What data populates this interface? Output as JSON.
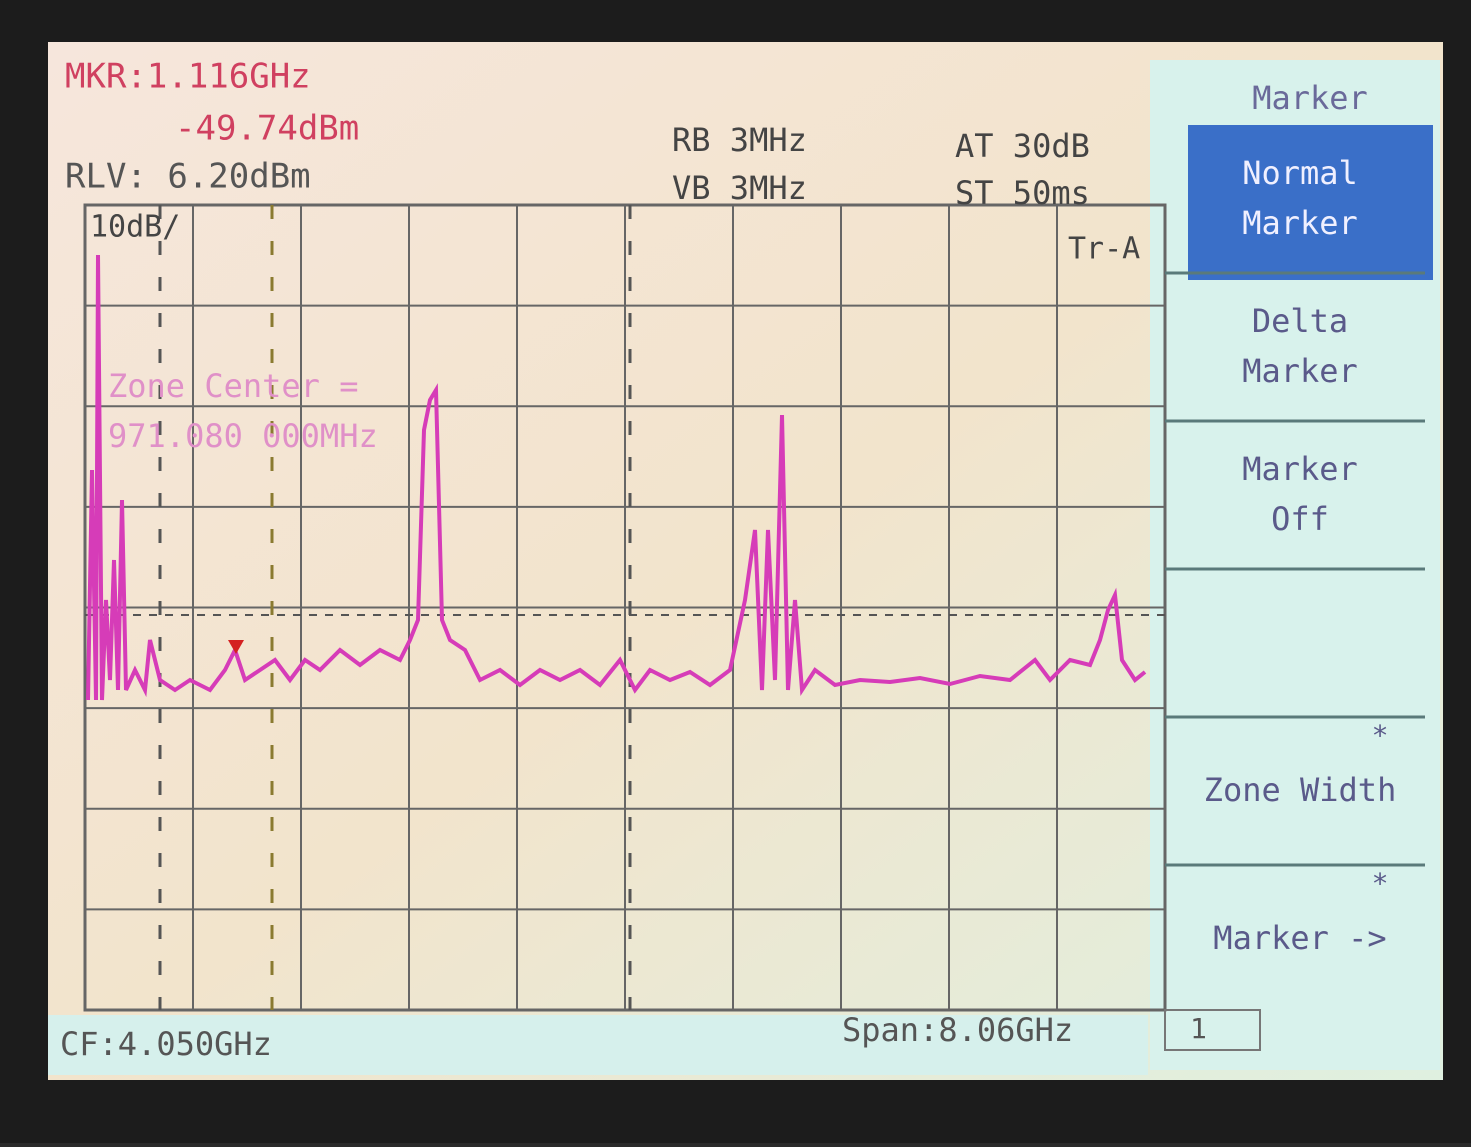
{
  "header": {
    "marker_frequency": "MKR:1.116GHz",
    "marker_level": "-49.74dBm",
    "reference_level": "RLV: 6.20dBm"
  },
  "settings": {
    "rbw": "RB 3MHz",
    "vbw": "VB 3MHz",
    "attenuation": "AT 30dB",
    "sweep_time": "ST 50ms"
  },
  "graticule": {
    "scale": "10dB/",
    "trace": "Tr-A"
  },
  "zone": {
    "label": "Zone Center =",
    "value": "971.080 000MHz"
  },
  "footer": {
    "center_frequency": "CF:4.050GHz",
    "span": "Span:8.06GHz",
    "indicator": "1"
  },
  "menu": {
    "title": "Marker",
    "items": [
      {
        "lines": [
          "Normal",
          "Marker"
        ]
      },
      {
        "lines": [
          "Delta",
          "Marker"
        ]
      },
      {
        "lines": [
          "Marker",
          "Off"
        ]
      },
      {
        "lines": []
      },
      {
        "flag": "*",
        "lines": [
          "Zone Width"
        ]
      },
      {
        "flag": "*",
        "lines": [
          "Marker ->"
        ]
      }
    ]
  }
}
